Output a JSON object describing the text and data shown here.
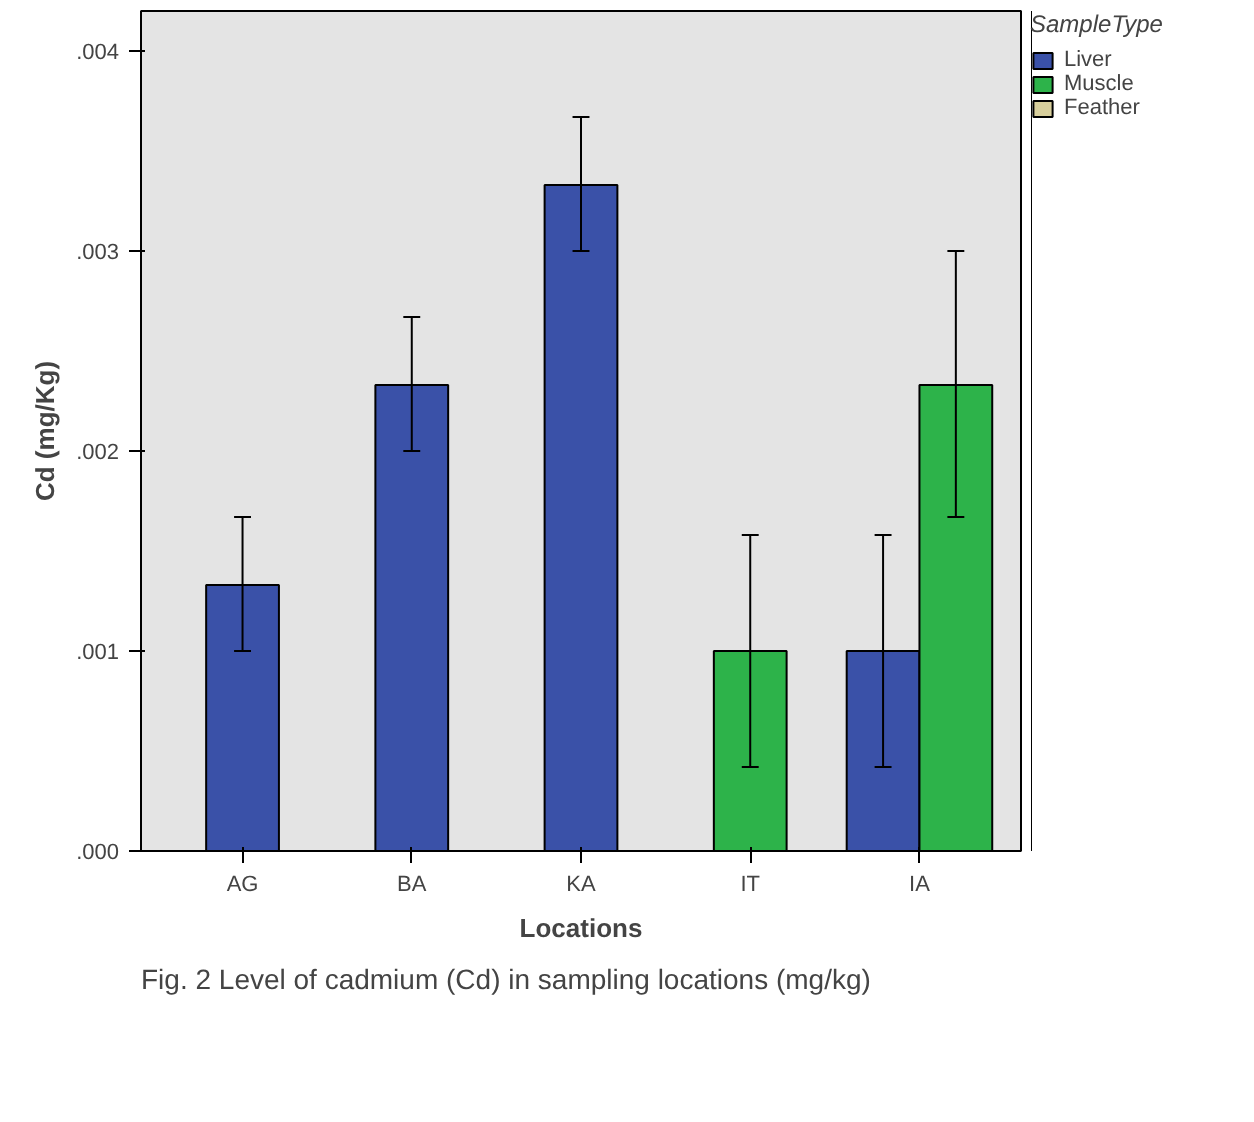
{
  "chart_data": {
    "type": "bar",
    "xlabel": "Locations",
    "ylabel": "Cd (mg/Kg)",
    "legend_title": "SampleType",
    "legend": "top right",
    "grid": false,
    "categories": [
      "AG",
      "BA",
      "KA",
      "IT",
      "IA"
    ],
    "ylim": [
      0,
      0.0042
    ],
    "yticks": [
      {
        "value": 0,
        "label": ".000"
      },
      {
        "value": 0.001,
        "label": ".001"
      },
      {
        "value": 0.002,
        "label": ".002"
      },
      {
        "value": 0.003,
        "label": ".003"
      },
      {
        "value": 0.004,
        "label": ".004"
      }
    ],
    "series": [
      {
        "name": "Liver",
        "color": "#3a51a8",
        "values": [
          0.00133,
          0.00233,
          0.00333,
          null,
          0.001
        ],
        "errors": [
          [
            0.001,
            0.00167
          ],
          [
            0.002,
            0.00267
          ],
          [
            0.003,
            0.00367
          ],
          null,
          [
            0.00042,
            0.00158
          ]
        ]
      },
      {
        "name": "Muscle",
        "color": "#2db34a",
        "values": [
          null,
          null,
          null,
          0.001,
          0.00233
        ],
        "errors": [
          null,
          null,
          null,
          [
            0.00042,
            0.00158
          ],
          [
            0.00167,
            0.003
          ]
        ]
      },
      {
        "name": "Feather",
        "color": "#d8cf9c",
        "values": [
          null,
          null,
          null,
          null,
          null
        ]
      }
    ],
    "annotations": [
      "Fig. 2  Level of cadmium (Cd) in sampling locations (mg/kg)"
    ]
  }
}
